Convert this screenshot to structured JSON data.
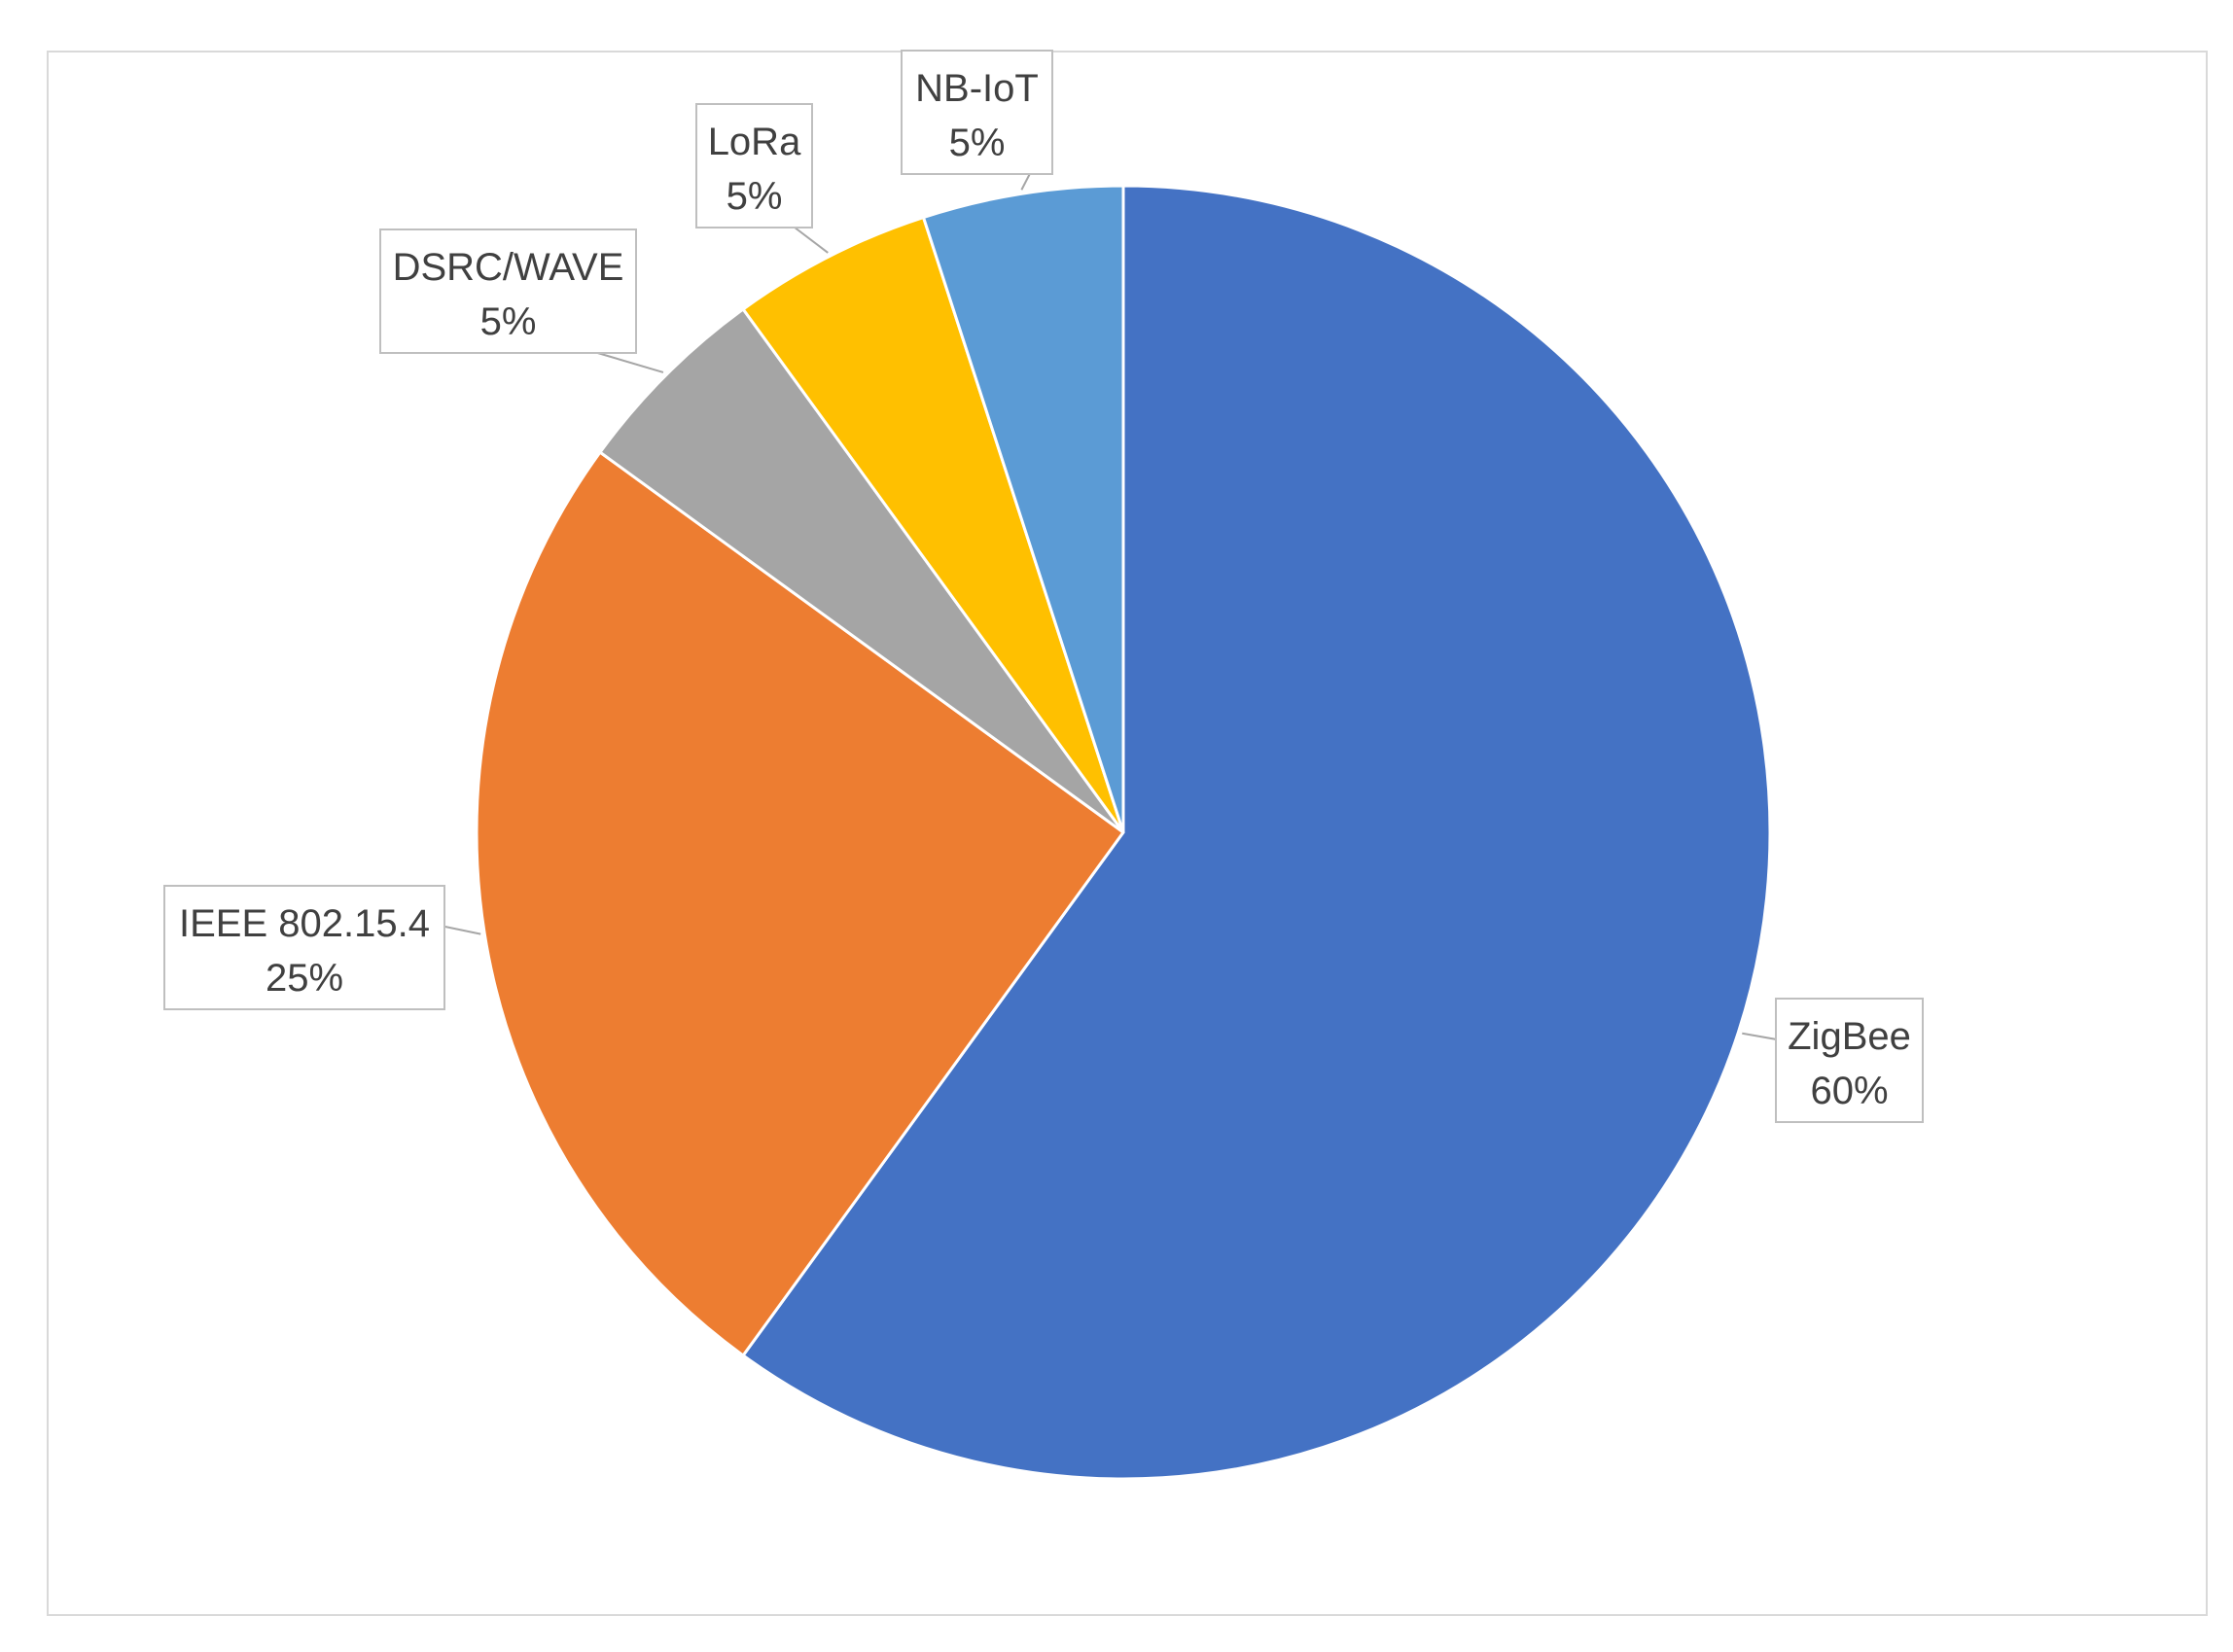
{
  "chart_data": {
    "type": "pie",
    "start_angle_deg": 0,
    "direction": "clockwise",
    "slices": [
      {
        "label": "ZigBee",
        "value": 60,
        "percent_label": "60%",
        "color": "#4472C4"
      },
      {
        "label": "IEEE 802.15.4",
        "value": 25,
        "percent_label": "25%",
        "color": "#ED7D31"
      },
      {
        "label": "DSRC/WAVE",
        "value": 5,
        "percent_label": "5%",
        "color": "#A5A5A5"
      },
      {
        "label": "LoRa",
        "value": 5,
        "percent_label": "5%",
        "color": "#FFC000"
      },
      {
        "label": "NB-IoT",
        "value": 5,
        "percent_label": "5%",
        "color": "#5B9BD5"
      }
    ],
    "data_labels": "category name and percentage in callouts",
    "legend": "none"
  }
}
